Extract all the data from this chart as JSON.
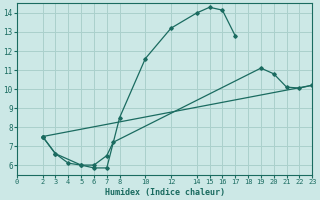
{
  "xlabel": "Humidex (Indice chaleur)",
  "ylabel": "",
  "bg_color": "#cce8e6",
  "grid_color": "#aad0cc",
  "line_color": "#1a6b60",
  "xlim": [
    0,
    23
  ],
  "ylim": [
    5.5,
    14.5
  ],
  "xticks": [
    0,
    2,
    3,
    4,
    5,
    6,
    7,
    8,
    10,
    12,
    14,
    15,
    16,
    17,
    18,
    19,
    20,
    21,
    22,
    23
  ],
  "yticks": [
    6,
    7,
    8,
    9,
    10,
    11,
    12,
    13,
    14
  ],
  "curve1_x": [
    2,
    3,
    4,
    5,
    6,
    7,
    8,
    10,
    12,
    14,
    15,
    16,
    17
  ],
  "curve1_y": [
    7.5,
    6.6,
    6.1,
    6.0,
    5.85,
    5.85,
    8.5,
    11.6,
    13.2,
    14.0,
    14.3,
    14.15,
    12.8
  ],
  "curve2_x": [
    2,
    3,
    5,
    6,
    7,
    7.5,
    19,
    20,
    21,
    22,
    23
  ],
  "curve2_y": [
    7.5,
    6.6,
    6.0,
    6.0,
    6.5,
    7.2,
    11.1,
    10.8,
    10.1,
    10.05,
    10.2
  ],
  "curve3_x": [
    2,
    23
  ],
  "curve3_y": [
    7.5,
    10.2
  ]
}
